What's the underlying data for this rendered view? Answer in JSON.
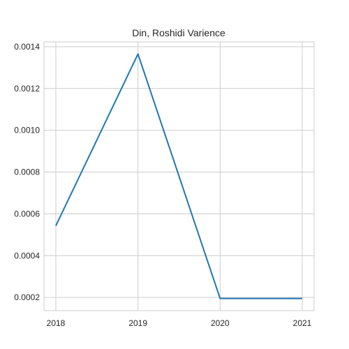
{
  "chart_data": {
    "type": "line",
    "title": "Din, Roshidi Varience",
    "xlabel": "",
    "ylabel": "",
    "x": [
      "2018",
      "2019",
      "2020",
      "2021"
    ],
    "series": [
      {
        "values": [
          0.000543,
          0.001365,
          0.000195,
          0.000195
        ]
      }
    ],
    "yticks": [
      "0.0002",
      "0.0004",
      "0.0006",
      "0.0008",
      "0.0010",
      "0.0012",
      "0.0014"
    ],
    "ylim": [
      0.000137,
      0.001423
    ],
    "grid": true,
    "line_color": "#1f77b4",
    "grid_color": "#cccccc"
  }
}
